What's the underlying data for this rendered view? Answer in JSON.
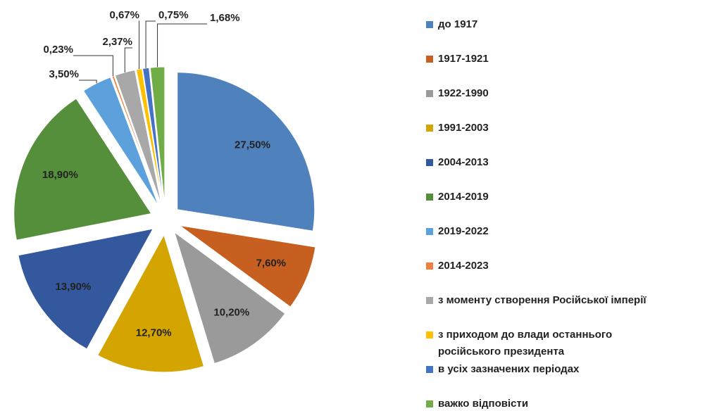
{
  "chart_data": {
    "type": "pie",
    "categories": [
      "до 1917",
      "1917-1921",
      "1922-1990",
      "1991-2003",
      "2004-2013",
      "2014-2019",
      "2019-2022",
      "2014-2023",
      "з моменту створення Російської імперії",
      "з приходом до влади останнього російського президента",
      "в усіх зазначених періодах",
      "важко відповісти"
    ],
    "values": [
      27.5,
      7.6,
      10.2,
      12.7,
      13.9,
      18.9,
      3.5,
      0.23,
      2.37,
      0.67,
      0.75,
      1.68
    ],
    "value_labels": [
      "27,50%",
      "7,60%",
      "10,20%",
      "12,70%",
      "13,90%",
      "18,90%",
      "3,50%",
      "0,23%",
      "2,37%",
      "0,67%",
      "0,75%",
      "1,68%"
    ],
    "colors": [
      "#4f81bd",
      "#c65f1f",
      "#9a9a9a",
      "#d4a500",
      "#34589e",
      "#558f3b",
      "#5ca1db",
      "#ef7f3a",
      "#a8a8a8",
      "#ffc000",
      "#4472c4",
      "#70ad47"
    ],
    "legend": "right"
  }
}
